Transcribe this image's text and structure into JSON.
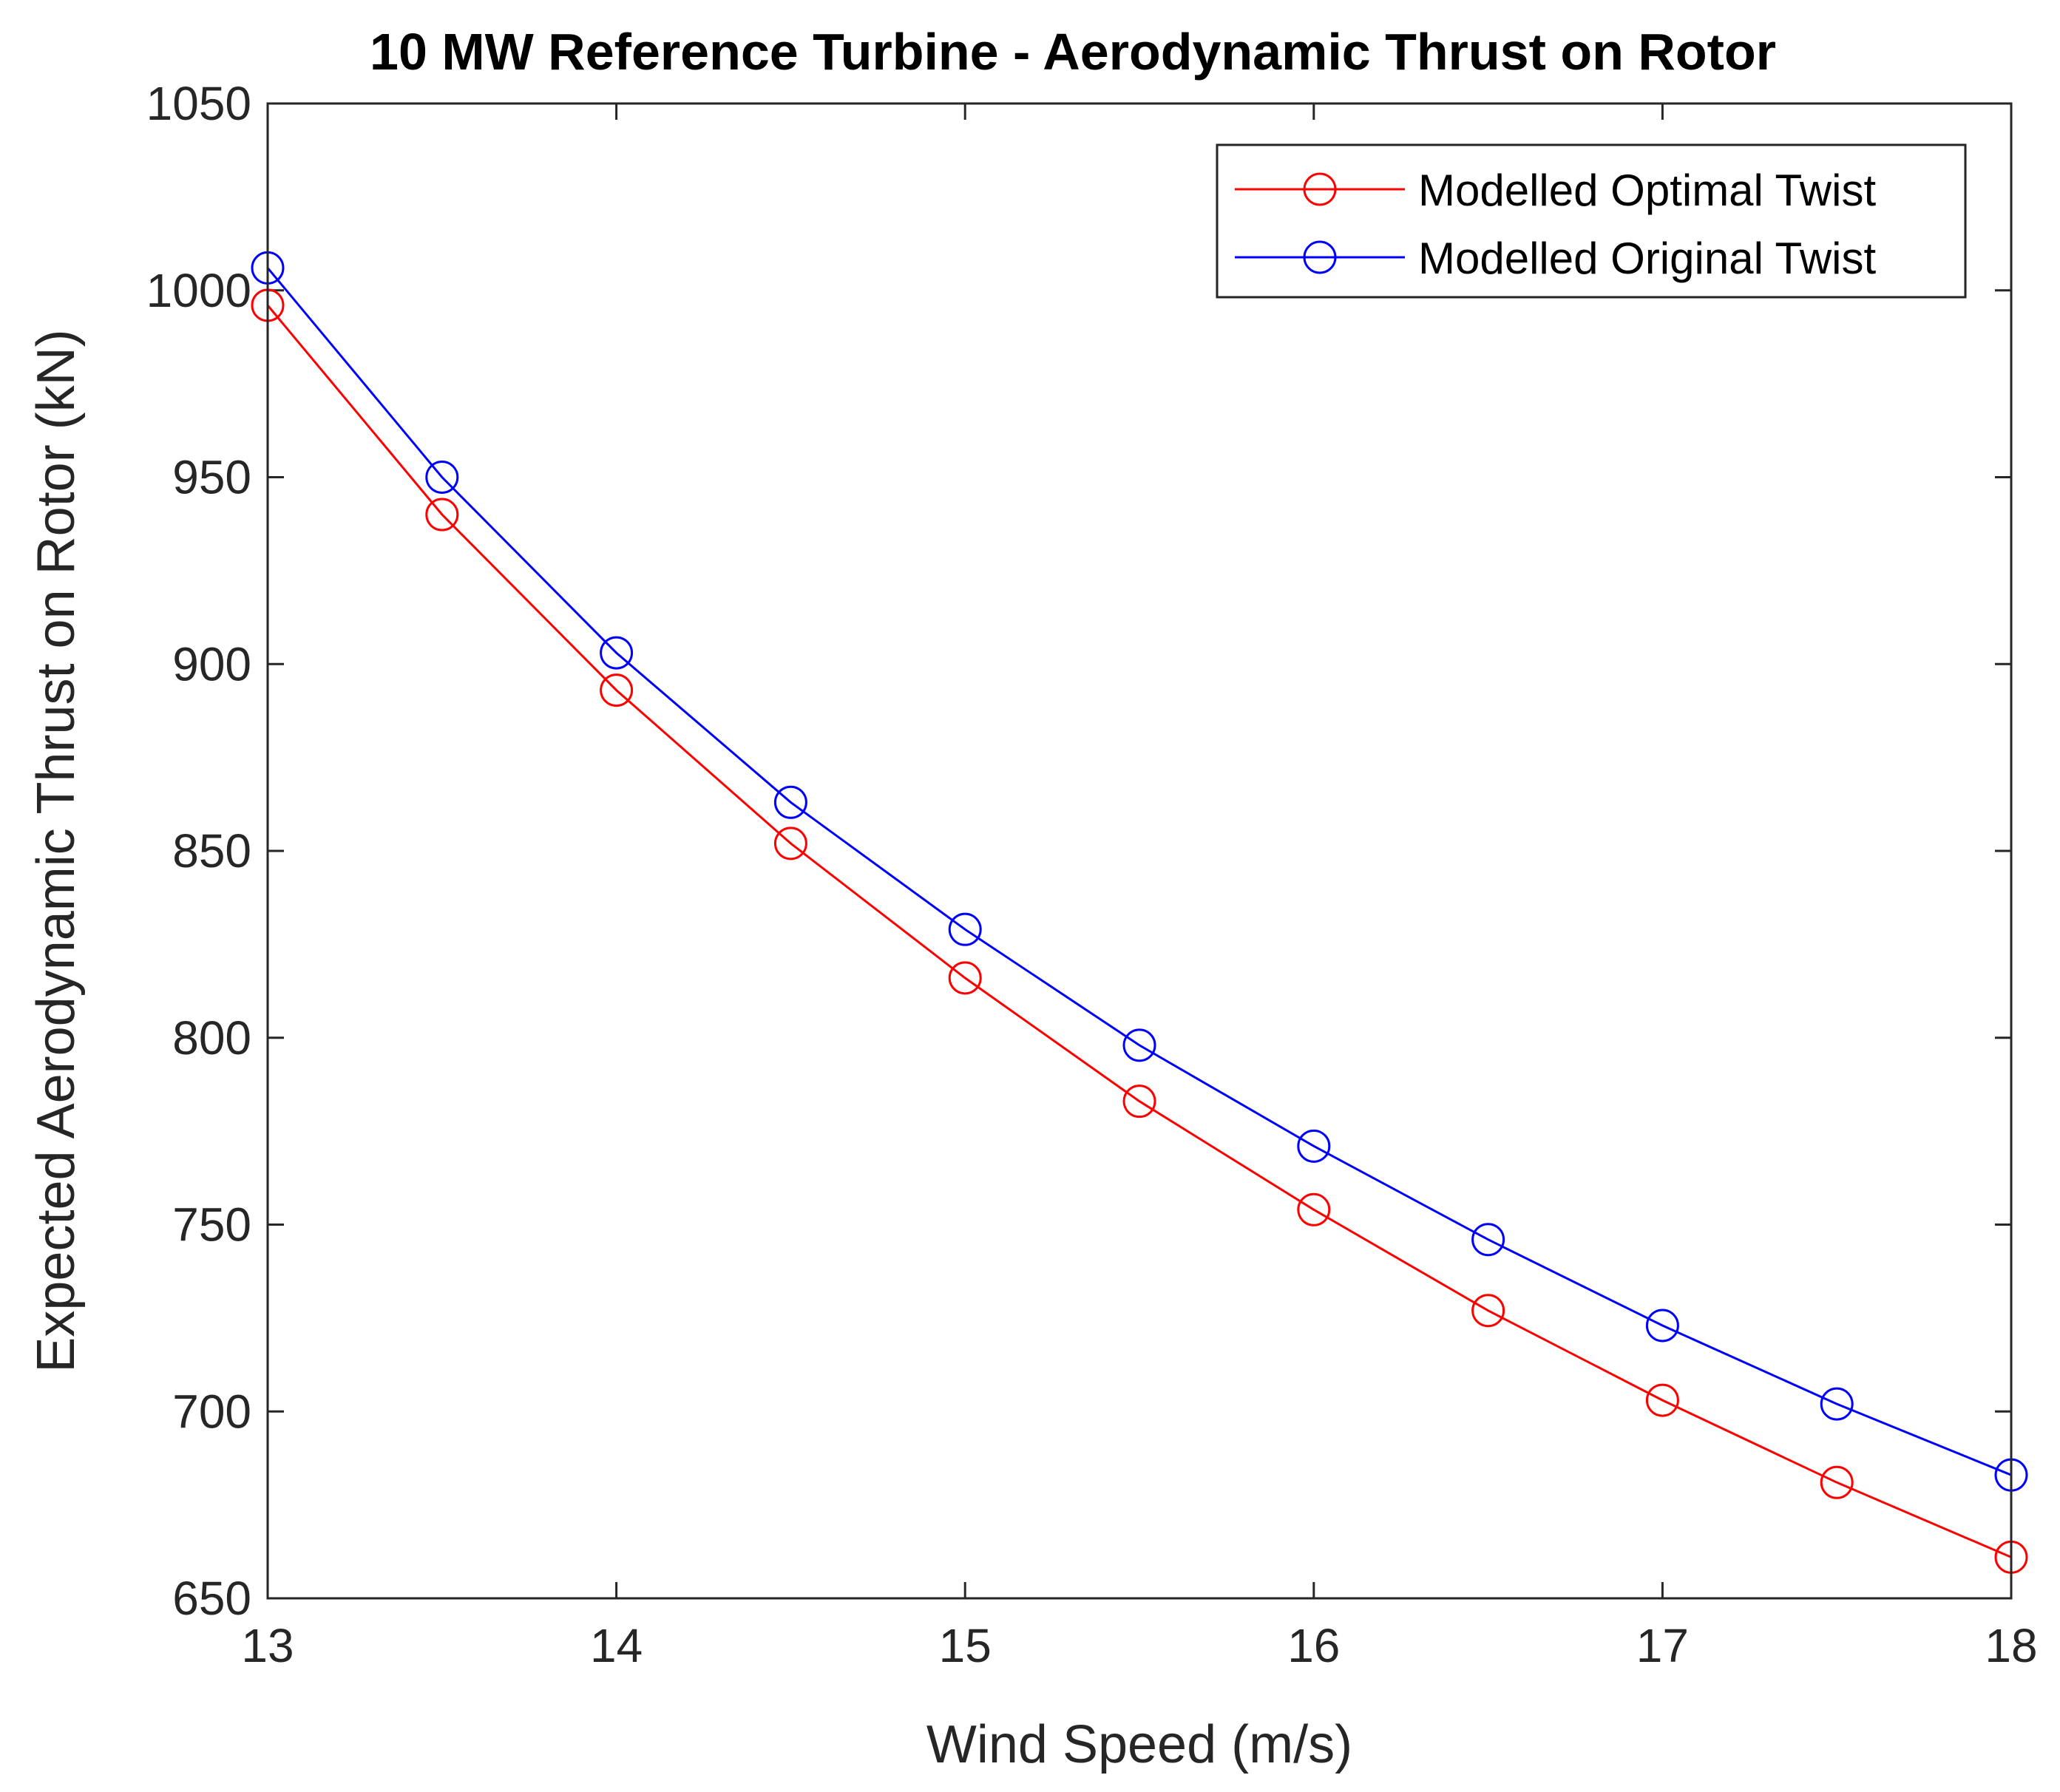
{
  "chart_data": {
    "type": "line",
    "title": "10 MW Reference Turbine - Aerodynamic Thrust on Rotor",
    "xlabel": "Wind Speed (m/s)",
    "ylabel": "Expected Aerodynamic Thrust on Rotor (kN)",
    "xlim": [
      13,
      18
    ],
    "ylim": [
      650,
      1050
    ],
    "xticks": [
      "13",
      "14",
      "15",
      "16",
      "17",
      "18"
    ],
    "yticks": [
      "650",
      "700",
      "750",
      "800",
      "850",
      "900",
      "950",
      "1000",
      "1050"
    ],
    "grid": false,
    "legend_position": "top-right",
    "x": [
      13,
      13.5,
      14,
      14.5,
      15,
      15.5,
      16,
      16.5,
      17,
      17.5,
      18
    ],
    "series": [
      {
        "name": "Modelled Optimal Twist",
        "color": "#ff0000",
        "marker": "circle",
        "values": [
          996,
          940,
          893,
          852,
          816,
          783,
          754,
          727,
          703,
          681,
          661
        ]
      },
      {
        "name": "Modelled Original Twist",
        "color": "#0000ff",
        "marker": "circle",
        "values": [
          1006,
          950,
          903,
          863,
          829,
          798,
          771,
          746,
          723,
          702,
          683
        ]
      }
    ]
  }
}
